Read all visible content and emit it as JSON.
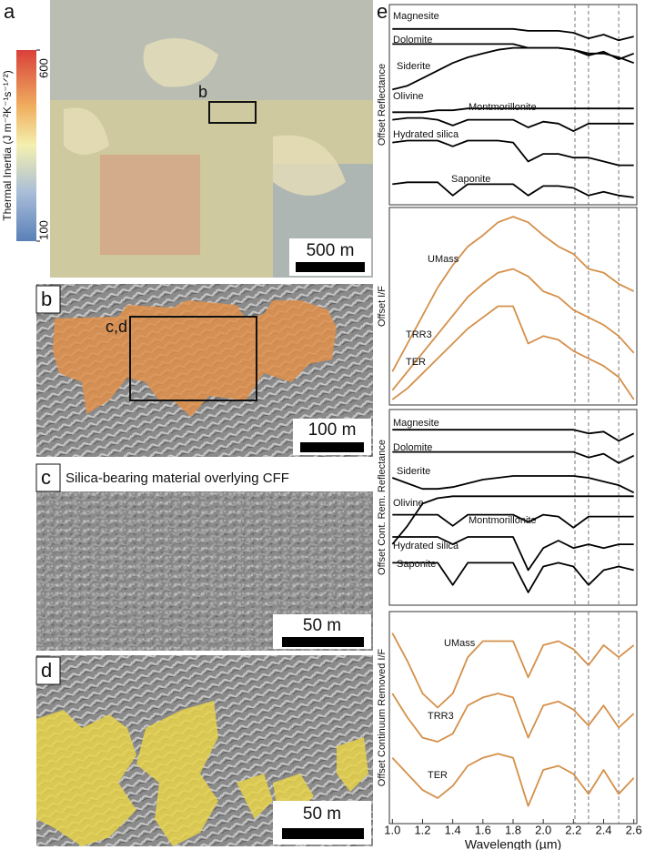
{
  "panels": {
    "a": {
      "letter": "a",
      "colorbar": {
        "label": "Thermal Inertia (J m⁻²K⁻¹s⁻¹ᐟ²)",
        "ticks": [
          600,
          100
        ],
        "lim": [
          100,
          600
        ]
      },
      "box_label": "b",
      "scale_bar": "500 m"
    },
    "b": {
      "letter": "b",
      "box_label": "c,d",
      "scale_bar": "100 m"
    },
    "c": {
      "letter": "c",
      "title": "Silica-bearing material overlying CFF",
      "scale_bar": "50 m"
    },
    "d": {
      "letter": "d",
      "scale_bar": "50 m"
    },
    "e": {
      "letter": "e"
    }
  },
  "chart_data": [
    {
      "type": "line",
      "y_label": "Offset Reflectance",
      "xlim": [
        0.98,
        2.62
      ],
      "ylim": [
        0,
        100
      ],
      "reference_lines": [
        2.21,
        2.3,
        2.5
      ],
      "x": [
        1.0,
        1.1,
        1.2,
        1.3,
        1.4,
        1.5,
        1.6,
        1.7,
        1.8,
        1.9,
        2.0,
        2.1,
        2.2,
        2.3,
        2.4,
        2.5,
        2.6
      ],
      "series": [
        {
          "name": "Magnesite",
          "color": "#000000",
          "values": [
            90,
            90,
            90,
            90,
            90,
            90,
            90,
            90,
            90,
            89,
            89,
            89,
            88,
            85,
            87,
            84,
            86
          ]
        },
        {
          "name": "Dolomite",
          "color": "#000000",
          "values": [
            82,
            82,
            82,
            82,
            82,
            82,
            82,
            82,
            82,
            80,
            80,
            80,
            79,
            76,
            78,
            74,
            77
          ]
        },
        {
          "name": "Siderite",
          "color": "#000000",
          "values": [
            58,
            60,
            64,
            68,
            72,
            75,
            77,
            79,
            80,
            80,
            80,
            80,
            79,
            77,
            77,
            75,
            72
          ]
        },
        {
          "name": "Olivine",
          "color": "#000000",
          "values": [
            46,
            46,
            46,
            47,
            47,
            48,
            48,
            48,
            48,
            48,
            48,
            48,
            48,
            48,
            48,
            48,
            48
          ]
        },
        {
          "name": "Montmorillonite",
          "color": "#000000",
          "values": [
            42,
            43,
            43,
            42,
            39,
            42,
            42,
            42,
            42,
            38,
            41,
            40,
            36,
            40,
            40,
            40,
            40
          ]
        },
        {
          "name": "Hydrated silica",
          "color": "#000000",
          "values": [
            30,
            31,
            31,
            31,
            28,
            31,
            31,
            31,
            30,
            20,
            24,
            24,
            22,
            22,
            20,
            18,
            18
          ]
        },
        {
          "name": "Saponite",
          "color": "#000000",
          "values": [
            8,
            9,
            9,
            9,
            2,
            8,
            8,
            8,
            8,
            2,
            7,
            7,
            6,
            2,
            4,
            2,
            1
          ]
        }
      ]
    },
    {
      "type": "line",
      "y_label": "Offset I/F",
      "xlim": [
        0.98,
        2.62
      ],
      "ylim": [
        0,
        100
      ],
      "reference_lines": [
        2.21,
        2.3,
        2.5
      ],
      "x": [
        1.0,
        1.1,
        1.2,
        1.3,
        1.4,
        1.5,
        1.6,
        1.7,
        1.8,
        1.9,
        2.0,
        2.1,
        2.2,
        2.3,
        2.4,
        2.5,
        2.6
      ],
      "series": [
        {
          "name": "UMass",
          "color": "#d4904a",
          "values": [
            15,
            30,
            45,
            60,
            72,
            82,
            88,
            95,
            98,
            95,
            88,
            82,
            78,
            70,
            68,
            62,
            58
          ]
        },
        {
          "name": "TRR3",
          "color": "#d4904a",
          "values": [
            5,
            15,
            25,
            35,
            45,
            55,
            62,
            68,
            70,
            66,
            58,
            55,
            48,
            44,
            40,
            34,
            25
          ]
        },
        {
          "name": "TER",
          "color": "#d4904a",
          "values": [
            0,
            6,
            14,
            22,
            30,
            38,
            44,
            50,
            50,
            30,
            34,
            32,
            26,
            22,
            18,
            12,
            0
          ]
        }
      ]
    },
    {
      "type": "line",
      "y_label": "Offset Cont. Rem. Reflectance",
      "xlim": [
        0.98,
        2.62
      ],
      "ylim": [
        0,
        100
      ],
      "reference_lines": [
        2.21,
        2.3,
        2.5
      ],
      "x": [
        1.0,
        1.1,
        1.2,
        1.3,
        1.4,
        1.5,
        1.6,
        1.7,
        1.8,
        1.9,
        2.0,
        2.1,
        2.2,
        2.3,
        2.4,
        2.5,
        2.6
      ],
      "series": [
        {
          "name": "Magnesite",
          "color": "#000000",
          "values": [
            92,
            92,
            92,
            92,
            92,
            92,
            92,
            92,
            92,
            92,
            92,
            92,
            92,
            90,
            91,
            86,
            90
          ]
        },
        {
          "name": "Dolomite",
          "color": "#000000",
          "values": [
            80,
            80,
            80,
            80,
            80,
            80,
            80,
            80,
            80,
            80,
            80,
            80,
            80,
            77,
            79,
            74,
            78
          ]
        },
        {
          "name": "Siderite",
          "color": "#000000",
          "values": [
            66,
            63,
            60,
            60,
            61,
            63,
            65,
            66,
            67,
            67,
            67,
            67,
            67,
            66,
            64,
            62,
            58
          ]
        },
        {
          "name": "Olivine",
          "color": "#000000",
          "values": [
            30,
            40,
            52,
            55,
            56,
            56,
            56,
            56,
            56,
            56,
            56,
            56,
            56,
            56,
            56,
            56,
            56
          ]
        },
        {
          "name": "Montmorillonite",
          "color": "#000000",
          "values": [
            46,
            46,
            46,
            46,
            40,
            46,
            46,
            46,
            46,
            42,
            46,
            45,
            39,
            45,
            45,
            45,
            45
          ]
        },
        {
          "name": "Hydrated silica",
          "color": "#000000",
          "values": [
            34,
            34,
            34,
            34,
            30,
            34,
            34,
            34,
            34,
            16,
            28,
            32,
            28,
            30,
            28,
            30,
            30
          ]
        },
        {
          "name": "Saponite",
          "color": "#000000",
          "values": [
            20,
            20,
            20,
            20,
            8,
            20,
            20,
            20,
            20,
            4,
            18,
            20,
            18,
            8,
            16,
            18,
            16
          ]
        }
      ]
    },
    {
      "type": "line",
      "y_label": "Offset Continuum Removed I/F",
      "x_label": "Wavelength (µm)",
      "xlim": [
        0.98,
        2.62
      ],
      "ylim": [
        0,
        100
      ],
      "reference_lines": [
        2.21,
        2.3,
        2.5
      ],
      "xticks": [
        {
          "value": 1.0,
          "label": "1.0"
        },
        1.2,
        1.4,
        1.6,
        1.8,
        {
          "value": 2.0,
          "label": "2.0"
        },
        2.2,
        2.4,
        2.6
      ],
      "x": [
        1.0,
        1.1,
        1.2,
        1.3,
        1.4,
        1.5,
        1.6,
        1.7,
        1.8,
        1.9,
        2.0,
        2.1,
        2.2,
        2.3,
        2.4,
        2.5,
        2.6
      ],
      "series": [
        {
          "name": "UMass",
          "color": "#d4904a",
          "values": [
            92,
            78,
            62,
            55,
            62,
            80,
            88,
            88,
            88,
            70,
            86,
            88,
            84,
            76,
            86,
            80,
            86
          ]
        },
        {
          "name": "TRR3",
          "color": "#d4904a",
          "values": [
            62,
            50,
            40,
            38,
            42,
            56,
            60,
            62,
            60,
            40,
            56,
            58,
            54,
            46,
            56,
            45,
            52
          ]
        },
        {
          "name": "TER",
          "color": "#d4904a",
          "values": [
            30,
            22,
            14,
            10,
            16,
            26,
            30,
            32,
            30,
            6,
            24,
            26,
            22,
            12,
            24,
            12,
            20
          ]
        }
      ]
    }
  ]
}
